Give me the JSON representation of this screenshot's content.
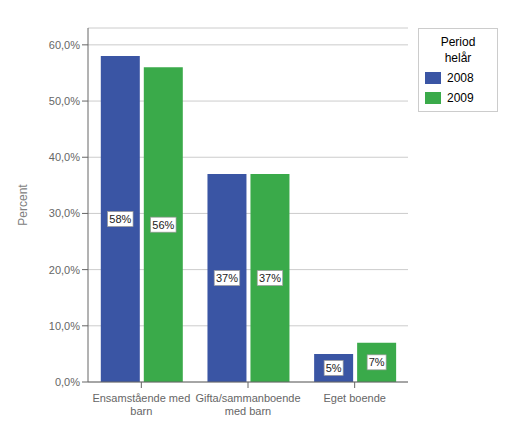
{
  "chart_data": {
    "type": "bar",
    "categories": [
      "Ensamstående med\nbarn",
      "Gifta/sammanboende\nmed barn",
      "Eget boende"
    ],
    "series": [
      {
        "name": "2008",
        "color": "#3a55a4",
        "values": [
          58,
          37,
          5
        ],
        "value_labels": [
          "58%",
          "37%",
          "5%"
        ]
      },
      {
        "name": "2009",
        "color": "#3aaa4a",
        "values": [
          56,
          37,
          7
        ],
        "value_labels": [
          "56%",
          "37%",
          "7%"
        ]
      }
    ],
    "ylabel": "Percent",
    "ylim": [
      0,
      63
    ],
    "yticks": [
      {
        "value": 0,
        "label": "0,0%"
      },
      {
        "value": 10,
        "label": "10,0%"
      },
      {
        "value": 20,
        "label": "20,0%"
      },
      {
        "value": 30,
        "label": "30,0%"
      },
      {
        "value": 40,
        "label": "40,0%"
      },
      {
        "value": 50,
        "label": "50,0%"
      },
      {
        "value": 60,
        "label": "60,0%"
      }
    ],
    "grid": true,
    "legend": "right",
    "legend_title": "Period\nhelår",
    "data_labels": true
  }
}
